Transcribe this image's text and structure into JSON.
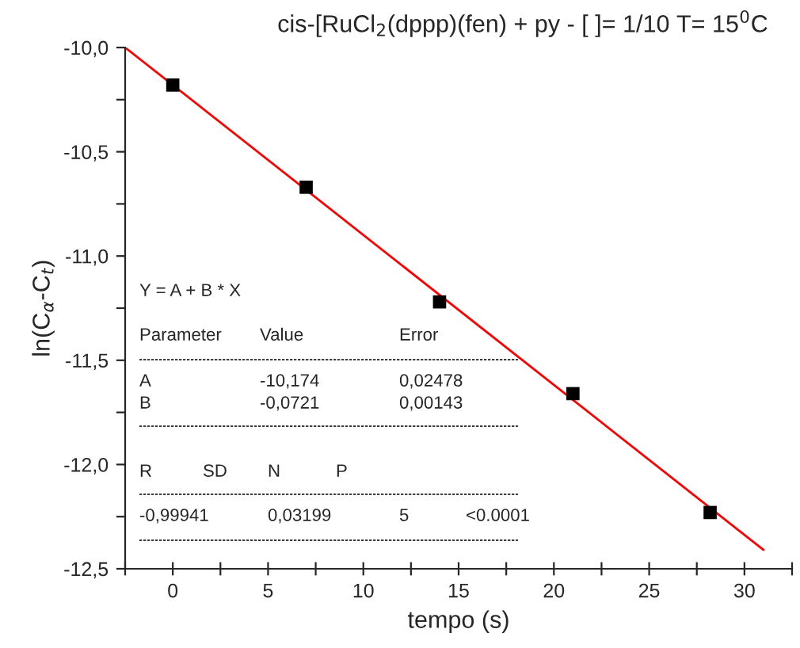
{
  "chart_data": {
    "type": "scatter",
    "title": "cis-[RuCl$_{2}$(dppp)(fen) + py - [ ]= 1/10 T= 15$^{0}$C",
    "xlabel": "tempo (s)",
    "ylabel": "ln(C$_{α}$-C$_{t}$)",
    "series": [
      {
        "color": "#000000",
        "marker": "square",
        "x": [
          0,
          7,
          14,
          21,
          28.2
        ],
        "values": [
          -10.18,
          -10.67,
          -11.22,
          -11.66,
          -12.23
        ]
      },
      {
        "type": "line",
        "color": "#ff0000",
        "marker": "none",
        "line_style": "solid",
        "x": [
          -2.5,
          31
        ],
        "values": [
          -10.0,
          -12.409
        ]
      }
    ],
    "xlim": [
      -2.5,
      32.5
    ],
    "ylim": [
      -12.5,
      -10.0
    ],
    "xticks": [
      {
        "value": -2.5,
        "label": null
      },
      0,
      {
        "value": 2.5,
        "label": null
      },
      5,
      {
        "value": 7.5,
        "label": null
      },
      10,
      {
        "value": 12.5,
        "label": null
      },
      15,
      {
        "value": 17.5,
        "label": null
      },
      20,
      {
        "value": 22.5,
        "label": null
      },
      25,
      {
        "value": 27.5,
        "label": null
      },
      30,
      {
        "value": 32.5,
        "label": null
      }
    ],
    "yticks": [
      {
        "value": -12.5,
        "label": "-12,5"
      },
      {
        "value": -12.25,
        "label": null
      },
      {
        "value": -12.0,
        "label": "-12,0"
      },
      {
        "value": -11.75,
        "label": null
      },
      {
        "value": -11.5,
        "label": "-11,5"
      },
      {
        "value": -11.25,
        "label": null
      },
      {
        "value": -11.0,
        "label": "-11,0"
      },
      {
        "value": -10.75,
        "label": null
      },
      {
        "value": -10.5,
        "label": "-10,5"
      },
      {
        "value": -10.25,
        "label": null
      },
      {
        "value": -10.0,
        "label": "-10,0"
      }
    ],
    "grid": false,
    "legend": false,
    "annotations": [
      "Y = A + B * X",
      "Parameter",
      "Value",
      "Error",
      "A",
      "-10,174",
      "0,02478",
      "B",
      "-0,0721",
      "0,00143",
      "R",
      "SD",
      "N",
      "P",
      "-0,99941",
      "0,03199",
      "5",
      "<0.0001"
    ]
  }
}
